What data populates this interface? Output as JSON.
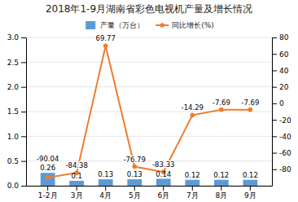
{
  "chart_data": {
    "type": "bar",
    "title": "2018年1-9月湖南省彩色电视机产量及增长情况",
    "categories": [
      "1-2月",
      "3月",
      "4月",
      "5月",
      "6月",
      "7月",
      "8月",
      "9月"
    ],
    "series": [
      {
        "name": "产量（万台）",
        "type": "bar",
        "color": "#5b9bd5",
        "values": [
          0.26,
          0.1,
          0.13,
          0.13,
          0.14,
          0.12,
          0.12,
          0.12
        ]
      },
      {
        "name": "同比增长(%)",
        "type": "line",
        "axis": "y2",
        "color": "#ed7d31",
        "marker": "circle",
        "values": [
          -90.04,
          -84.38,
          69.77,
          -76.79,
          -83.33,
          -14.29,
          -7.69,
          -7.69
        ]
      }
    ],
    "ylim": [
      0,
      3.0
    ],
    "yticks": [
      {
        "value": 0,
        "label": "0.0"
      },
      0.5,
      {
        "value": 1.0,
        "label": "1.0"
      },
      1.5,
      {
        "value": 2.0,
        "label": "2.0"
      },
      2.5,
      {
        "value": 3.0,
        "label": "3.0"
      }
    ],
    "y2lim": [
      -100,
      80
    ],
    "y2ticks": [
      -80,
      -60,
      -40,
      -20,
      0,
      20,
      40,
      60,
      80
    ],
    "grid": true,
    "legend": "top",
    "data_labels": true
  }
}
